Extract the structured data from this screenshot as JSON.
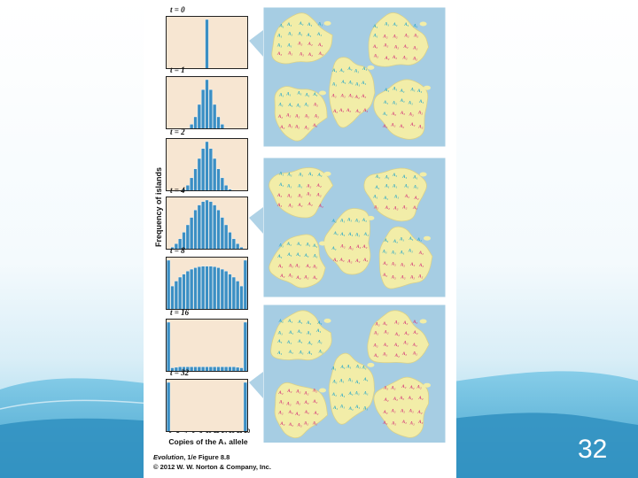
{
  "slide": {
    "number": "32",
    "colors": {
      "sea": "#a6cde3",
      "land": "#f2eda8",
      "panel_bg": "#f7e6d2",
      "bar": "#3b8fc4",
      "a1": "#2aa8c8",
      "a2": "#d53a7a"
    }
  },
  "figure": {
    "ylabel": "Frequency of islands",
    "xlabel": "Copies of the A₁ allele",
    "credit_title": "Evolution",
    "credit_rest": ", 1/e Figure 8.8",
    "copyright": "© 2012 W. W. Norton & Company, Inc."
  },
  "chart_data": [
    {
      "type": "bar",
      "title": "t = 0",
      "categories": [
        0,
        1,
        2,
        3,
        4,
        5,
        6,
        7,
        8,
        9,
        10,
        11,
        12,
        13,
        14,
        15,
        16,
        17,
        18,
        19,
        20
      ],
      "values": [
        0,
        0,
        0,
        0,
        0,
        0,
        0,
        0,
        0,
        0,
        1,
        0,
        0,
        0,
        0,
        0,
        0,
        0,
        0,
        0,
        0
      ]
    },
    {
      "type": "bar",
      "title": "t = 1",
      "categories": [
        0,
        1,
        2,
        3,
        4,
        5,
        6,
        7,
        8,
        9,
        10,
        11,
        12,
        13,
        14,
        15,
        16,
        17,
        18,
        19,
        20
      ],
      "values": [
        0,
        0,
        0,
        0,
        0,
        0.02,
        0.1,
        0.25,
        0.5,
        0.8,
        1,
        0.8,
        0.5,
        0.25,
        0.1,
        0.02,
        0,
        0,
        0,
        0,
        0
      ]
    },
    {
      "type": "bar",
      "title": "t = 2",
      "categories": [
        0,
        1,
        2,
        3,
        4,
        5,
        6,
        7,
        8,
        9,
        10,
        11,
        12,
        13,
        14,
        15,
        16,
        17,
        18,
        19,
        20
      ],
      "values": [
        0,
        0,
        0,
        0,
        0.04,
        0.12,
        0.27,
        0.45,
        0.66,
        0.86,
        1,
        0.86,
        0.66,
        0.45,
        0.27,
        0.12,
        0.04,
        0,
        0,
        0,
        0
      ]
    },
    {
      "type": "bar",
      "title": "t = 4",
      "categories": [
        0,
        1,
        2,
        3,
        4,
        5,
        6,
        7,
        8,
        9,
        10,
        11,
        12,
        13,
        14,
        15,
        16,
        17,
        18,
        19,
        20
      ],
      "values": [
        0,
        0.05,
        0.12,
        0.22,
        0.35,
        0.5,
        0.65,
        0.8,
        0.9,
        0.97,
        1,
        0.97,
        0.9,
        0.8,
        0.65,
        0.5,
        0.35,
        0.22,
        0.12,
        0.05,
        0
      ]
    },
    {
      "type": "bar",
      "title": "t = 8",
      "categories": [
        0,
        1,
        2,
        3,
        4,
        5,
        6,
        7,
        8,
        9,
        10,
        11,
        12,
        13,
        14,
        15,
        16,
        17,
        18,
        19,
        20
      ],
      "values": [
        1,
        0.48,
        0.58,
        0.66,
        0.72,
        0.78,
        0.82,
        0.85,
        0.87,
        0.88,
        0.88,
        0.88,
        0.87,
        0.85,
        0.82,
        0.78,
        0.72,
        0.66,
        0.58,
        0.48,
        1
      ]
    },
    {
      "type": "bar",
      "title": "t = 16",
      "categories": [
        0,
        1,
        2,
        3,
        4,
        5,
        6,
        7,
        8,
        9,
        10,
        11,
        12,
        13,
        14,
        15,
        16,
        17,
        18,
        19,
        20
      ],
      "values": [
        1,
        0.08,
        0.09,
        0.1,
        0.1,
        0.1,
        0.1,
        0.1,
        0.1,
        0.1,
        0.1,
        0.1,
        0.1,
        0.1,
        0.1,
        0.1,
        0.1,
        0.1,
        0.09,
        0.08,
        1
      ]
    },
    {
      "type": "bar",
      "title": "t = 32",
      "categories": [
        0,
        1,
        2,
        3,
        4,
        5,
        6,
        7,
        8,
        9,
        10,
        11,
        12,
        13,
        14,
        15,
        16,
        17,
        18,
        19,
        20
      ],
      "values": [
        1,
        0,
        0,
        0,
        0,
        0,
        0,
        0,
        0,
        0,
        0,
        0,
        0,
        0,
        0,
        0,
        0,
        0,
        0,
        0,
        1
      ],
      "xticks": [
        "0",
        "2",
        "4",
        "6",
        "8",
        "10",
        "12",
        "14",
        "16",
        "18",
        "20"
      ]
    }
  ],
  "diagram": {
    "allele_labels": [
      "A₁",
      "A₂"
    ],
    "panels": [
      {
        "islands": [
          {
            "a1": 12,
            "a2": 8
          },
          {
            "a1": 6,
            "a2": 14
          },
          {
            "a1": 10,
            "a2": 10
          },
          {
            "a1": 9,
            "a2": 11
          },
          {
            "a1": 11,
            "a2": 9
          }
        ]
      },
      {
        "islands": [
          {
            "a1": 8,
            "a2": 12
          },
          {
            "a1": 13,
            "a2": 7
          },
          {
            "a1": 11,
            "a2": 9
          },
          {
            "a1": 10,
            "a2": 10
          },
          {
            "a1": 9,
            "a2": 11
          }
        ]
      },
      {
        "islands": [
          {
            "a1": 20,
            "a2": 0
          },
          {
            "a1": 0,
            "a2": 20
          },
          {
            "a1": 20,
            "a2": 0
          },
          {
            "a1": 0,
            "a2": 20
          },
          {
            "a1": 0,
            "a2": 20
          }
        ]
      }
    ]
  }
}
